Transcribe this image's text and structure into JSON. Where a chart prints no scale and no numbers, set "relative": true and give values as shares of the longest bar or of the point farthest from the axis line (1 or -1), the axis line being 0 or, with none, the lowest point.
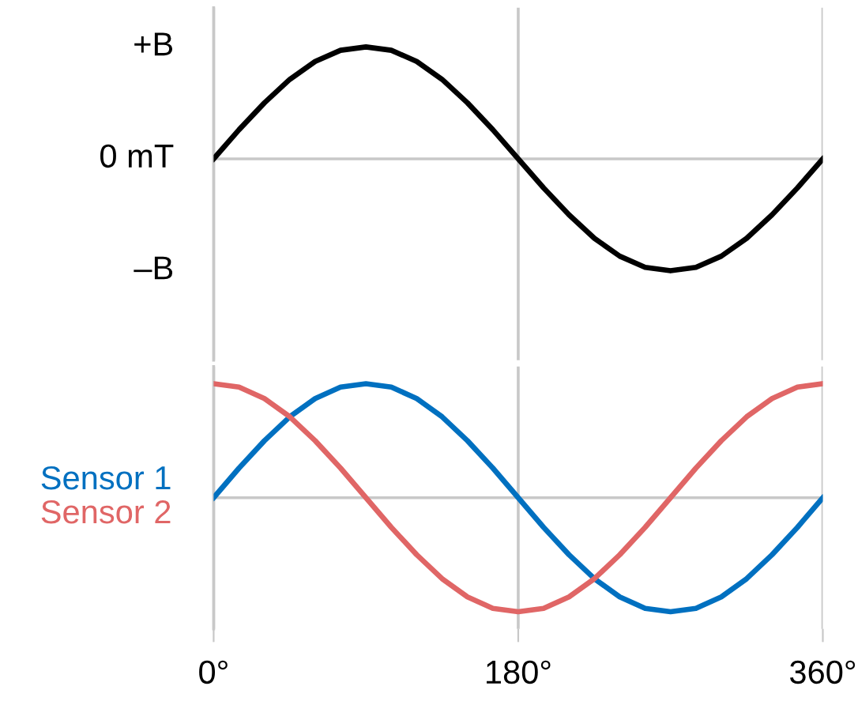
{
  "chart_data": [
    {
      "type": "line",
      "x": [
        0,
        15,
        30,
        45,
        60,
        75,
        90,
        105,
        120,
        135,
        150,
        165,
        180,
        195,
        210,
        225,
        240,
        255,
        270,
        285,
        300,
        315,
        330,
        345,
        360
      ],
      "series": [
        {
          "color": "#000000",
          "values": [
            0,
            0.26,
            0.5,
            0.71,
            0.87,
            0.97,
            1,
            0.97,
            0.87,
            0.71,
            0.5,
            0.26,
            0,
            -0.26,
            -0.5,
            -0.71,
            -0.87,
            -0.97,
            -1,
            -0.97,
            -0.87,
            -0.71,
            -0.5,
            -0.26,
            0
          ]
        }
      ],
      "xlim": [
        0,
        360
      ],
      "relative": true,
      "annotations": [
        "+B",
        "0 mT",
        "–B"
      ],
      "tick_labels": false,
      "grid": "x"
    },
    {
      "type": "line",
      "x": [
        0,
        15,
        30,
        45,
        60,
        75,
        90,
        105,
        120,
        135,
        150,
        165,
        180,
        195,
        210,
        225,
        240,
        255,
        270,
        285,
        300,
        315,
        330,
        345,
        360
      ],
      "series": [
        {
          "name": "Sensor 1",
          "color": "#0070c0",
          "values": [
            0,
            0.26,
            0.5,
            0.71,
            0.87,
            0.97,
            1,
            0.97,
            0.87,
            0.71,
            0.5,
            0.26,
            0,
            -0.26,
            -0.5,
            -0.71,
            -0.87,
            -0.97,
            -1,
            -0.97,
            -0.87,
            -0.71,
            -0.5,
            -0.26,
            0
          ]
        },
        {
          "name": "Sensor 2",
          "color": "#e06666",
          "values": [
            1,
            0.97,
            0.87,
            0.71,
            0.5,
            0.26,
            0,
            -0.26,
            -0.5,
            -0.71,
            -0.87,
            -0.97,
            -1,
            -0.97,
            -0.87,
            -0.71,
            -0.5,
            -0.26,
            0,
            0.26,
            0.5,
            0.71,
            0.87,
            0.97,
            1
          ]
        }
      ],
      "relative": true,
      "xlim": [
        0,
        360
      ],
      "xticks": [
        {
          "value": 0,
          "label": "0°"
        },
        {
          "value": 180,
          "label": "180°"
        },
        {
          "value": 360,
          "label": "360°"
        }
      ],
      "tick_labels": "x",
      "grid": "x",
      "legend": "left"
    }
  ]
}
